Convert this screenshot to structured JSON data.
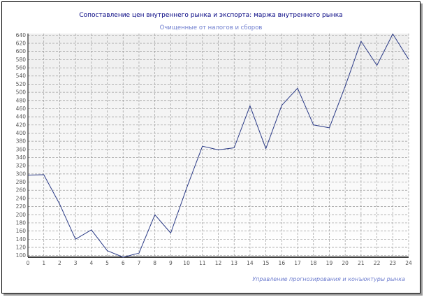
{
  "chart_data": {
    "type": "line",
    "title": "Сопоставление цен внутреннего рынка и экспорта: маржа внутреннего рынка",
    "subtitle": "Очищенные от налогов и сборов",
    "footer": "Управление прогнозирования и конъюктуры рынка",
    "x": [
      0,
      1,
      2,
      3,
      4,
      5,
      6,
      7,
      8,
      9,
      10,
      11,
      12,
      13,
      14,
      15,
      16,
      17,
      18,
      19,
      20,
      21,
      22,
      23,
      24
    ],
    "series": [
      {
        "name": "",
        "values": [
          297,
          298,
          226,
          140,
          163,
          112,
          96,
          106,
          200,
          155,
          265,
          368,
          359,
          364,
          467,
          362,
          468,
          510,
          420,
          413,
          515,
          625,
          566,
          643,
          581
        ],
        "color": "#2a3a86"
      }
    ],
    "xlim": [
      0,
      24
    ],
    "ylim": [
      96,
      644
    ],
    "yticks": [
      100,
      120,
      140,
      160,
      180,
      200,
      220,
      240,
      260,
      280,
      300,
      320,
      340,
      360,
      380,
      400,
      420,
      440,
      460,
      480,
      500,
      520,
      540,
      560,
      580,
      600,
      620,
      640
    ],
    "xticks": [
      0,
      1,
      2,
      3,
      4,
      5,
      6,
      7,
      8,
      9,
      10,
      11,
      12,
      13,
      14,
      15,
      16,
      17,
      18,
      19,
      20,
      21,
      22,
      23,
      24
    ],
    "grid": true,
    "legend": "none",
    "colors": {
      "plot_background_top": "#eeeeee",
      "plot_background_bottom": "#ffffff",
      "grid": "#9a9a9a",
      "axis": "#000000"
    }
  }
}
